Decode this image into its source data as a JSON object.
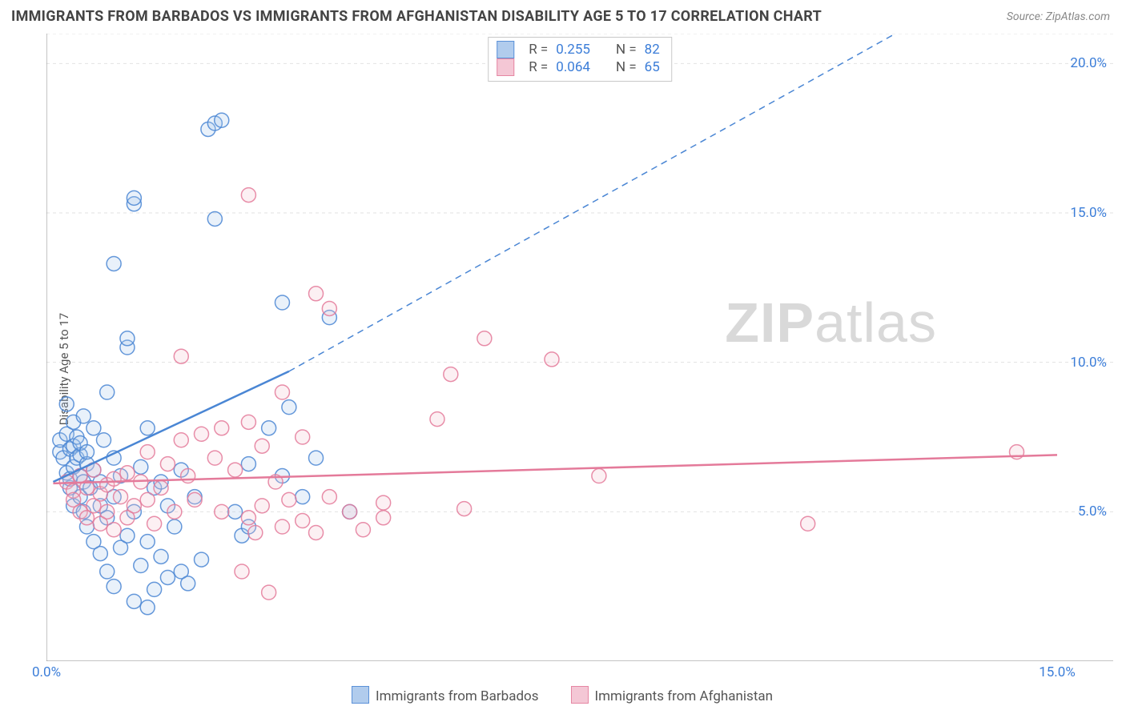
{
  "title": "IMMIGRANTS FROM BARBADOS VS IMMIGRANTS FROM AFGHANISTAN DISABILITY AGE 5 TO 17 CORRELATION CHART",
  "source": "Source: ZipAtlas.com",
  "y_axis_label": "Disability Age 5 to 17",
  "watermark_bold": "ZIP",
  "watermark_rest": "atlas",
  "chart": {
    "type": "scatter",
    "background_color": "#ffffff",
    "grid_color": "#e2e2e2",
    "grid_dash": "4,4",
    "axis_line_color": "#888888",
    "tick_label_color": "#3b7dd8",
    "xlim": [
      0,
      15
    ],
    "ylim": [
      0,
      21
    ],
    "x_ticks": [
      0,
      2.5,
      5,
      7.5,
      10,
      12.5,
      15
    ],
    "x_tick_labels": {
      "0": "0.0%",
      "15": "15.0%"
    },
    "y_ticks": [
      5,
      10,
      15,
      20
    ],
    "y_tick_labels": {
      "5": "5.0%",
      "10": "10.0%",
      "15": "15.0%",
      "20": "20.0%"
    },
    "marker_radius": 9,
    "marker_stroke_width": 1.5,
    "marker_fill_opacity": 0.25,
    "line_width_solid": 2.5,
    "line_width_dash": 1.5,
    "series": [
      {
        "id": "barbados",
        "label": "Immigrants from Barbados",
        "color_stroke": "#4a86d4",
        "color_fill": "#a9c7ec",
        "r_value": "0.255",
        "n_value": "82",
        "regression": {
          "solid": {
            "x1": 0.1,
            "y1": 6.0,
            "x2": 3.6,
            "y2": 9.7
          },
          "dashed": {
            "x1": 3.6,
            "y1": 9.7,
            "x2": 12.6,
            "y2": 21.0
          }
        },
        "points": [
          [
            0.2,
            7.0
          ],
          [
            0.2,
            7.4
          ],
          [
            0.25,
            6.8
          ],
          [
            0.3,
            6.3
          ],
          [
            0.3,
            7.6
          ],
          [
            0.3,
            8.6
          ],
          [
            0.35,
            5.8
          ],
          [
            0.35,
            6.1
          ],
          [
            0.35,
            7.1
          ],
          [
            0.4,
            6.5
          ],
          [
            0.4,
            7.2
          ],
          [
            0.4,
            8.0
          ],
          [
            0.4,
            5.2
          ],
          [
            0.45,
            6.8
          ],
          [
            0.45,
            7.5
          ],
          [
            0.5,
            5.5
          ],
          [
            0.5,
            6.2
          ],
          [
            0.5,
            6.9
          ],
          [
            0.5,
            7.3
          ],
          [
            0.55,
            5.0
          ],
          [
            0.55,
            6.0
          ],
          [
            0.55,
            8.2
          ],
          [
            0.6,
            4.5
          ],
          [
            0.6,
            6.6
          ],
          [
            0.6,
            7.0
          ],
          [
            0.65,
            5.8
          ],
          [
            0.7,
            4.0
          ],
          [
            0.7,
            6.4
          ],
          [
            0.7,
            7.8
          ],
          [
            0.8,
            3.6
          ],
          [
            0.8,
            5.2
          ],
          [
            0.8,
            6.0
          ],
          [
            0.85,
            7.4
          ],
          [
            0.9,
            3.0
          ],
          [
            0.9,
            4.8
          ],
          [
            0.9,
            9.0
          ],
          [
            1.0,
            2.5
          ],
          [
            1.0,
            5.5
          ],
          [
            1.0,
            6.8
          ],
          [
            1.0,
            13.3
          ],
          [
            1.1,
            3.8
          ],
          [
            1.1,
            6.2
          ],
          [
            1.2,
            4.2
          ],
          [
            1.2,
            10.5
          ],
          [
            1.2,
            10.8
          ],
          [
            1.3,
            2.0
          ],
          [
            1.3,
            5.0
          ],
          [
            1.3,
            15.3
          ],
          [
            1.3,
            15.5
          ],
          [
            1.4,
            3.2
          ],
          [
            1.4,
            6.5
          ],
          [
            1.5,
            1.8
          ],
          [
            1.5,
            4.0
          ],
          [
            1.5,
            7.8
          ],
          [
            1.6,
            2.4
          ],
          [
            1.6,
            5.8
          ],
          [
            1.7,
            3.5
          ],
          [
            1.7,
            6.0
          ],
          [
            1.8,
            2.8
          ],
          [
            1.8,
            5.2
          ],
          [
            1.9,
            4.5
          ],
          [
            2.0,
            3.0
          ],
          [
            2.0,
            6.4
          ],
          [
            2.1,
            2.6
          ],
          [
            2.2,
            5.5
          ],
          [
            2.3,
            3.4
          ],
          [
            2.4,
            17.8
          ],
          [
            2.5,
            14.8
          ],
          [
            2.5,
            18.0
          ],
          [
            2.6,
            18.1
          ],
          [
            2.8,
            5.0
          ],
          [
            2.9,
            4.2
          ],
          [
            3.0,
            6.6
          ],
          [
            3.0,
            4.5
          ],
          [
            3.3,
            7.8
          ],
          [
            3.5,
            6.2
          ],
          [
            3.5,
            12.0
          ],
          [
            3.6,
            8.5
          ],
          [
            3.8,
            5.5
          ],
          [
            4.0,
            6.8
          ],
          [
            4.2,
            11.5
          ],
          [
            4.5,
            5.0
          ]
        ]
      },
      {
        "id": "afghanistan",
        "label": "Immigrants from Afghanistan",
        "color_stroke": "#e47a9a",
        "color_fill": "#f3c2d1",
        "r_value": "0.064",
        "n_value": "65",
        "regression": {
          "solid": {
            "x1": 0.1,
            "y1": 5.95,
            "x2": 15.0,
            "y2": 6.9
          },
          "dashed": null
        },
        "points": [
          [
            0.3,
            6.0
          ],
          [
            0.4,
            5.7
          ],
          [
            0.4,
            5.4
          ],
          [
            0.5,
            6.2
          ],
          [
            0.5,
            5.0
          ],
          [
            0.6,
            5.8
          ],
          [
            0.6,
            4.8
          ],
          [
            0.7,
            6.4
          ],
          [
            0.7,
            5.2
          ],
          [
            0.8,
            5.6
          ],
          [
            0.8,
            4.6
          ],
          [
            0.9,
            5.9
          ],
          [
            0.9,
            5.0
          ],
          [
            1.0,
            6.1
          ],
          [
            1.0,
            4.4
          ],
          [
            1.1,
            5.5
          ],
          [
            1.2,
            6.3
          ],
          [
            1.2,
            4.8
          ],
          [
            1.3,
            5.2
          ],
          [
            1.4,
            6.0
          ],
          [
            1.5,
            5.4
          ],
          [
            1.5,
            7.0
          ],
          [
            1.6,
            4.6
          ],
          [
            1.7,
            5.8
          ],
          [
            1.8,
            6.6
          ],
          [
            1.9,
            5.0
          ],
          [
            2.0,
            7.4
          ],
          [
            2.0,
            10.2
          ],
          [
            2.1,
            6.2
          ],
          [
            2.2,
            5.4
          ],
          [
            2.3,
            7.6
          ],
          [
            2.5,
            6.8
          ],
          [
            2.6,
            5.0
          ],
          [
            2.6,
            7.8
          ],
          [
            2.8,
            6.4
          ],
          [
            2.9,
            3.0
          ],
          [
            3.0,
            4.8
          ],
          [
            3.0,
            8.0
          ],
          [
            3.0,
            15.6
          ],
          [
            3.1,
            4.3
          ],
          [
            3.2,
            5.2
          ],
          [
            3.2,
            7.2
          ],
          [
            3.3,
            2.3
          ],
          [
            3.4,
            6.0
          ],
          [
            3.5,
            4.5
          ],
          [
            3.5,
            9.0
          ],
          [
            3.6,
            5.4
          ],
          [
            3.8,
            4.7
          ],
          [
            3.8,
            7.5
          ],
          [
            4.0,
            12.3
          ],
          [
            4.0,
            4.3
          ],
          [
            4.2,
            5.5
          ],
          [
            4.2,
            11.8
          ],
          [
            4.5,
            5.0
          ],
          [
            4.7,
            4.4
          ],
          [
            5.0,
            4.8
          ],
          [
            5.0,
            5.3
          ],
          [
            5.8,
            8.1
          ],
          [
            6.0,
            9.6
          ],
          [
            6.2,
            5.1
          ],
          [
            6.5,
            10.8
          ],
          [
            7.5,
            10.1
          ],
          [
            8.2,
            6.2
          ],
          [
            11.3,
            4.6
          ],
          [
            14.4,
            7.0
          ]
        ]
      }
    ]
  },
  "top_legend_labels": {
    "r": "R  =",
    "n": "N  ="
  },
  "bottom_legend": [
    {
      "series": "barbados"
    },
    {
      "series": "afghanistan"
    }
  ]
}
